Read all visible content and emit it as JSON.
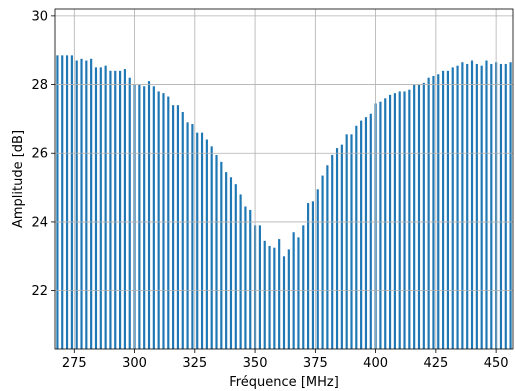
{
  "chart_data": {
    "type": "bar",
    "title": "",
    "xlabel": "Fréquence [MHz]",
    "ylabel": "Amplitude [dB]",
    "xlim": [
      267,
      457
    ],
    "ylim": [
      20.3,
      30.2
    ],
    "xticks": [
      275,
      300,
      325,
      350,
      375,
      400,
      425,
      450
    ],
    "yticks": [
      22,
      24,
      26,
      28,
      30
    ],
    "grid": true,
    "bar_color": "#1f77b4",
    "grid_color": "#b0b0b0",
    "x": [
      268,
      270,
      272,
      274,
      276,
      278,
      280,
      282,
      284,
      286,
      288,
      290,
      292,
      294,
      296,
      298,
      300,
      302,
      304,
      306,
      308,
      310,
      312,
      314,
      316,
      318,
      320,
      322,
      324,
      326,
      328,
      330,
      332,
      334,
      336,
      338,
      340,
      342,
      344,
      346,
      348,
      350,
      352,
      354,
      356,
      358,
      360,
      362,
      364,
      366,
      368,
      370,
      372,
      374,
      376,
      378,
      380,
      382,
      384,
      386,
      388,
      390,
      392,
      394,
      396,
      398,
      400,
      402,
      404,
      406,
      408,
      410,
      412,
      414,
      416,
      418,
      420,
      422,
      424,
      426,
      428,
      430,
      432,
      434,
      436,
      438,
      440,
      442,
      444,
      446,
      448,
      450,
      452,
      454,
      456
    ],
    "values": [
      28.85,
      28.85,
      28.85,
      28.85,
      28.7,
      28.75,
      28.7,
      28.75,
      28.5,
      28.5,
      28.55,
      28.4,
      28.4,
      28.4,
      28.45,
      28.2,
      28.0,
      28.0,
      27.95,
      28.1,
      27.95,
      27.8,
      27.75,
      27.65,
      27.4,
      27.4,
      27.2,
      26.9,
      26.85,
      26.6,
      26.6,
      26.4,
      26.2,
      25.95,
      25.75,
      25.45,
      25.3,
      25.1,
      24.8,
      24.45,
      24.35,
      23.9,
      23.9,
      23.45,
      23.3,
      23.25,
      23.5,
      23.0,
      23.2,
      23.7,
      23.55,
      23.9,
      24.55,
      24.6,
      24.95,
      25.35,
      25.65,
      25.95,
      26.15,
      26.25,
      26.55,
      26.55,
      26.8,
      26.95,
      27.05,
      27.15,
      27.45,
      27.5,
      27.6,
      27.7,
      27.75,
      27.8,
      27.8,
      27.85,
      28.0,
      28.0,
      28.05,
      28.2,
      28.25,
      28.3,
      28.4,
      28.4,
      28.5,
      28.55,
      28.65,
      28.6,
      28.7,
      28.6,
      28.55,
      28.7,
      28.6,
      28.65,
      28.6,
      28.6,
      28.65
    ]
  }
}
